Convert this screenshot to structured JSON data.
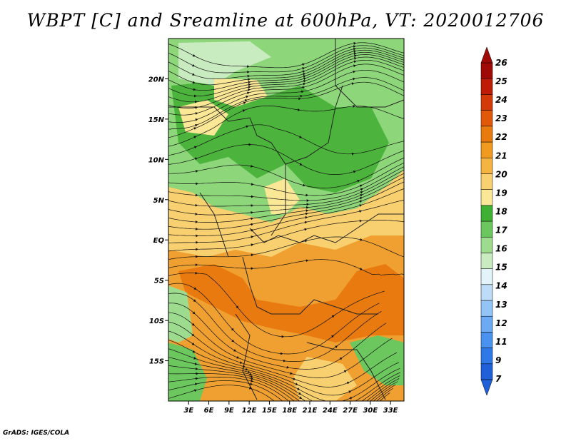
{
  "title": "WBPT [C] and Sreamline at 600hPa, VT: 2020012706",
  "credit": "GrADS: IGES/COLA",
  "map": {
    "lat_labels": [
      "20N",
      "15N",
      "10N",
      "5N",
      "EQ",
      "5S",
      "10S",
      "15S"
    ],
    "lat_values": [
      20,
      15,
      10,
      5,
      0,
      -5,
      -10,
      -15
    ],
    "lon_labels": [
      "3E",
      "6E",
      "9E",
      "12E",
      "15E",
      "18E",
      "21E",
      "24E",
      "27E",
      "30E",
      "33E"
    ],
    "lon_values": [
      3,
      6,
      9,
      12,
      15,
      18,
      21,
      24,
      27,
      30,
      33
    ],
    "lat_range": [
      -20,
      25
    ],
    "lon_range": [
      0,
      35
    ]
  },
  "colorbar": {
    "labels": [
      "7",
      "9",
      "11",
      "12",
      "13",
      "14",
      "15",
      "16",
      "17",
      "18",
      "19",
      "20",
      "21",
      "22",
      "23",
      "24",
      "25",
      "26"
    ],
    "colors": [
      "#1f5fd8",
      "#2f78e8",
      "#4a92f0",
      "#6cabf4",
      "#93c4f6",
      "#bcdcf8",
      "#e2f4fa",
      "#c8ecc0",
      "#9ddc8e",
      "#6cc85e",
      "#3eb034",
      "#fae896",
      "#f8d070",
      "#f5b342",
      "#f09a20",
      "#e87a10",
      "#e05808",
      "#d23a08",
      "#be1c06",
      "#a00a06"
    ],
    "low_color": "#1f5fd8",
    "high_color": "#a00a06"
  }
}
